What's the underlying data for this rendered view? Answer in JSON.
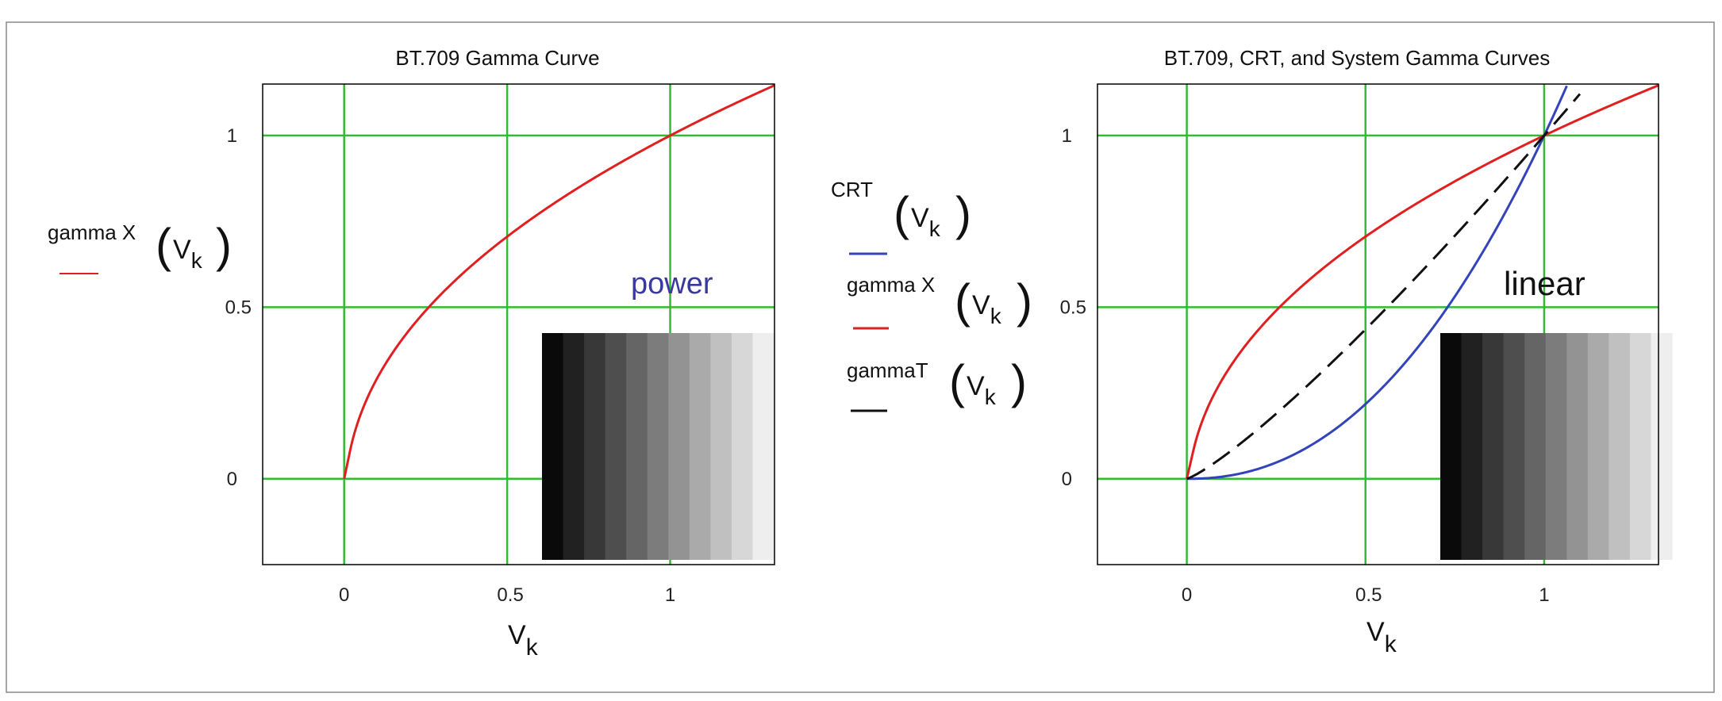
{
  "chart_data": [
    {
      "type": "line",
      "title": "BT.709 Gamma Curve",
      "xlabel": "V",
      "xlabel_sub": "k",
      "xlim": [
        -0.25,
        1.32
      ],
      "ylim": [
        -0.25,
        1.15
      ],
      "xticks": [
        0,
        0.5,
        1
      ],
      "yticks": [
        0,
        0.5,
        1
      ],
      "xtick_labels": [
        "0",
        "0.5",
        "1"
      ],
      "ytick_labels": [
        "0",
        "0.5",
        "1"
      ],
      "grid": true,
      "grid_color": "#33bb33",
      "series": [
        {
          "legend_text": "gamma X",
          "arg": "V",
          "arg_sub": "k",
          "color": "#e02020",
          "dash": "solid",
          "func": "bt709",
          "x": [
            0,
            0.02,
            0.05,
            0.1,
            0.2,
            0.3,
            0.4,
            0.5,
            0.6,
            0.7,
            0.8,
            0.9,
            1.0,
            1.1,
            1.2,
            1.32
          ],
          "y": [
            0,
            0.09,
            0.2,
            0.27,
            0.41,
            0.52,
            0.6,
            0.68,
            0.75,
            0.82,
            0.88,
            0.94,
            1.0,
            1.05,
            1.1,
            1.16
          ]
        }
      ],
      "annotation": {
        "text": "power",
        "color": "#3a3a9e"
      },
      "swatch": {
        "steps": 11,
        "order": "dark-to-light"
      }
    },
    {
      "type": "line",
      "title": "BT.709, CRT, and System Gamma Curves",
      "xlabel": "V",
      "xlabel_sub": "k",
      "xlim": [
        -0.25,
        1.32
      ],
      "ylim": [
        -0.25,
        1.15
      ],
      "xticks": [
        0,
        0.5,
        1
      ],
      "yticks": [
        0,
        0.5,
        1
      ],
      "xtick_labels": [
        "0",
        "0.5",
        "1"
      ],
      "ytick_labels": [
        "0",
        "0.5",
        "1"
      ],
      "grid": true,
      "grid_color": "#33bb33",
      "series": [
        {
          "legend_text": "CRT",
          "arg": "V",
          "arg_sub": "k",
          "color": "#3344bb",
          "dash": "solid",
          "func": "crt",
          "x": [
            0,
            0.1,
            0.2,
            0.3,
            0.4,
            0.5,
            0.6,
            0.7,
            0.8,
            0.9,
            1.0,
            1.1
          ],
          "y": [
            0,
            0.0,
            0.02,
            0.05,
            0.11,
            0.19,
            0.3,
            0.44,
            0.62,
            0.79,
            1.0,
            1.26
          ]
        },
        {
          "legend_text": "gamma X",
          "arg": "V",
          "arg_sub": "k",
          "color": "#e02020",
          "dash": "solid",
          "func": "bt709",
          "x": [
            0,
            0.02,
            0.05,
            0.1,
            0.2,
            0.3,
            0.4,
            0.5,
            0.6,
            0.7,
            0.8,
            0.9,
            1.0,
            1.1,
            1.2,
            1.32
          ],
          "y": [
            0,
            0.09,
            0.2,
            0.27,
            0.41,
            0.52,
            0.6,
            0.68,
            0.75,
            0.82,
            0.88,
            0.94,
            1.0,
            1.05,
            1.1,
            1.16
          ]
        },
        {
          "legend_text": "gammaT",
          "arg": "V",
          "arg_sub": "k",
          "color": "#111111",
          "dash": "dashed",
          "func": "system",
          "x": [
            0,
            0.1,
            0.2,
            0.3,
            0.4,
            0.5,
            0.6,
            0.7,
            0.8,
            0.9,
            1.0,
            1.1
          ],
          "y": [
            0,
            0.04,
            0.11,
            0.19,
            0.28,
            0.38,
            0.48,
            0.59,
            0.71,
            0.85,
            1.0,
            1.17
          ]
        }
      ],
      "annotation": {
        "text": "linear",
        "color": "#111111"
      },
      "swatch": {
        "steps": 11,
        "order": "dark-to-light"
      }
    }
  ]
}
